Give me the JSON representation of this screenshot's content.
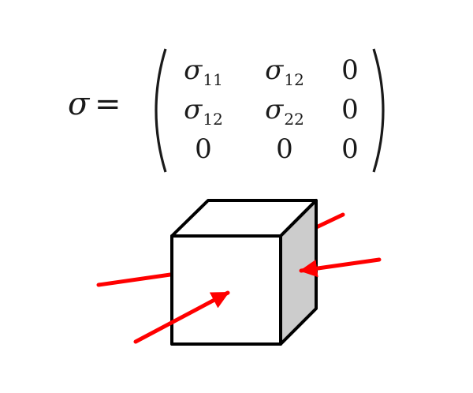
{
  "equation": {
    "lhs": "σ",
    "equals": "=",
    "matrix": [
      [
        {
          "sym": "σ",
          "sub": "11"
        },
        {
          "sym": "σ",
          "sub": "12"
        },
        {
          "sym": "0",
          "sub": ""
        }
      ],
      [
        {
          "sym": "σ",
          "sub": "12"
        },
        {
          "sym": "σ",
          "sub": "22"
        },
        {
          "sym": "0",
          "sub": ""
        }
      ],
      [
        {
          "sym": "0",
          "sub": ""
        },
        {
          "sym": "0",
          "sub": ""
        },
        {
          "sym": "0",
          "sub": ""
        }
      ]
    ]
  },
  "diagram": {
    "cube_front_color": "#ffffff",
    "cube_side_color": "#cccccc",
    "edge_color": "#000000",
    "arrow_color": "#ff0000"
  }
}
